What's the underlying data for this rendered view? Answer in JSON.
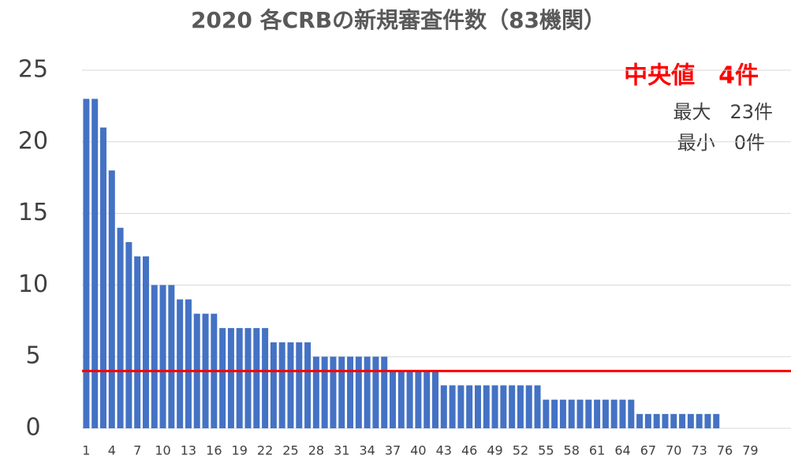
{
  "chart_data": {
    "type": "bar",
    "title": "2020 各CRBの新規審査件数（83機関）",
    "categories": [
      "1",
      null,
      null,
      "4",
      null,
      null,
      "7",
      null,
      null,
      "10",
      null,
      null,
      "13",
      null,
      null,
      "16",
      null,
      null,
      "19",
      null,
      null,
      "22",
      null,
      null,
      "25",
      null,
      null,
      "28",
      null,
      null,
      "31",
      null,
      null,
      "34",
      null,
      null,
      "37",
      null,
      null,
      "40",
      null,
      null,
      "43",
      null,
      null,
      "46",
      null,
      null,
      "49",
      null,
      null,
      "52",
      null,
      null,
      "55",
      null,
      null,
      "58",
      null,
      null,
      "61",
      null,
      null,
      "64",
      null,
      null,
      "67",
      null,
      null,
      "70",
      null,
      null,
      "73",
      null,
      null,
      "76",
      null,
      null,
      "79",
      null,
      null,
      null,
      null
    ],
    "values": [
      23,
      23,
      21,
      18,
      14,
      13,
      12,
      12,
      10,
      10,
      10,
      9,
      9,
      8,
      8,
      8,
      7,
      7,
      7,
      7,
      7,
      7,
      6,
      6,
      6,
      6,
      6,
      5,
      5,
      5,
      5,
      5,
      5,
      5,
      5,
      5,
      4,
      4,
      4,
      4,
      4,
      4,
      3,
      3,
      3,
      3,
      3,
      3,
      3,
      3,
      3,
      3,
      3,
      3,
      2,
      2,
      2,
      2,
      2,
      2,
      2,
      2,
      2,
      2,
      2,
      1,
      1,
      1,
      1,
      1,
      1,
      1,
      1,
      1,
      1,
      0,
      0,
      0,
      0,
      0,
      0,
      0,
      0
    ],
    "color": "#4472c4",
    "ylim": [
      0,
      25
    ],
    "yticks": [
      0,
      5,
      10,
      15,
      20,
      25
    ],
    "grid": true,
    "median_line": {
      "value": 4,
      "color": "#ff0000"
    },
    "annotations": {
      "median": "中央値　4件",
      "max": "最大　23件",
      "min": "最小　0件"
    }
  }
}
